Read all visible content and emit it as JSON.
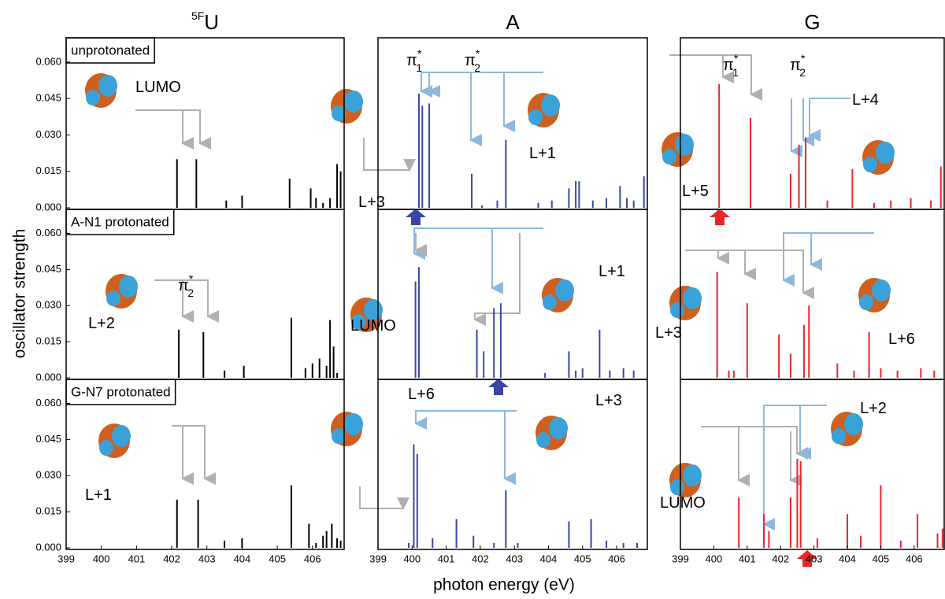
{
  "chart_data": [
    {
      "type": "stick",
      "title": {
        "sup": "5F",
        "text": "U"
      },
      "label": "unprotonated",
      "color": "#000000",
      "x": [
        402.15,
        402.7,
        403.55,
        404.0,
        405.35,
        405.95,
        406.1,
        406.3,
        406.5,
        406.7,
        406.8
      ],
      "values": [
        0.02,
        0.02,
        0.003,
        0.005,
        0.012,
        0.008,
        0.004,
        0.002,
        0.004,
        0.018,
        0.015
      ],
      "xlim": [
        399,
        406.9
      ],
      "ylim": [
        0,
        0.07
      ],
      "yticks": [
        {
          "value": 0,
          "label": "0.000"
        },
        {
          "value": 0.015,
          "label": "0.015"
        },
        {
          "value": 0.03,
          "label": "0.030"
        },
        {
          "value": 0.045,
          "label": "0.045"
        },
        {
          "value": 0.06,
          "label": "0.060"
        }
      ],
      "annotations": [
        {
          "text": "LUMO"
        }
      ]
    },
    {
      "type": "stick",
      "title": {
        "text": "A"
      },
      "color": "#3a45a6",
      "x": [
        400.2,
        400.3,
        400.5,
        401.75,
        402.05,
        402.5,
        402.75,
        403.7,
        404.1,
        404.6,
        404.8,
        404.9,
        405.3,
        405.7,
        406.1,
        406.3,
        406.5,
        406.8
      ],
      "values": [
        0.047,
        0.042,
        0.043,
        0.014,
        0.001,
        0.003,
        0.028,
        0.002,
        0.003,
        0.008,
        0.011,
        0.011,
        0.003,
        0.004,
        0.009,
        0.004,
        0.003,
        0.013
      ],
      "xlim": [
        399,
        406.9
      ],
      "ylim": [
        0,
        0.07
      ],
      "annotations": [
        {
          "text": "π",
          "sub": "1",
          "sup": "*"
        },
        {
          "text": "π",
          "sub": "2",
          "sup": "*"
        },
        {
          "text": "L+1"
        },
        {
          "text": "L+3"
        }
      ]
    },
    {
      "type": "stick",
      "title": {
        "text": "G"
      },
      "color": "#e8262a",
      "x": [
        400.16,
        401.1,
        402.3,
        402.55,
        402.75,
        403.4,
        404.15,
        404.8,
        405.3,
        405.9,
        406.5,
        406.8
      ],
      "values": [
        0.051,
        0.037,
        0.014,
        0.026,
        0.029,
        0.003,
        0.016,
        0.002,
        0.003,
        0.004,
        0.003,
        0.017
      ],
      "xlim": [
        399,
        406.9
      ],
      "ylim": [
        0,
        0.07
      ],
      "annotations": [
        {
          "text": "π",
          "sub": "1",
          "sup": "*"
        },
        {
          "text": "π",
          "sub": "2",
          "sup": "*"
        },
        {
          "text": "L+4"
        },
        {
          "text": "L+5"
        }
      ]
    },
    {
      "type": "stick",
      "label": "A-N1 protonated",
      "color": "#000000",
      "x": [
        402.2,
        402.9,
        403.5,
        404.05,
        405.4,
        405.8,
        406.0,
        406.2,
        406.4,
        406.5,
        406.6,
        406.7
      ],
      "values": [
        0.02,
        0.019,
        0.003,
        0.005,
        0.025,
        0.004,
        0.006,
        0.008,
        0.005,
        0.024,
        0.013,
        0.002
      ],
      "xlim": [
        399,
        406.9
      ],
      "ylim": [
        0,
        0.07
      ],
      "yticks": [
        {
          "value": 0,
          "label": "0.000"
        },
        {
          "value": 0.015,
          "label": "0.015"
        },
        {
          "value": 0.03,
          "label": "0.030"
        },
        {
          "value": 0.045,
          "label": "0.045"
        },
        {
          "value": 0.06,
          "label": "0.060"
        }
      ],
      "annotations": [
        {
          "text": "π",
          "sub": "2",
          "sup": "*"
        },
        {
          "text": "L+2"
        }
      ]
    },
    {
      "type": "stick",
      "color": "#3a45a6",
      "x": [
        400.1,
        400.2,
        401.9,
        402.1,
        402.4,
        402.6,
        403.9,
        404.6,
        404.8,
        405.0,
        405.5,
        405.8,
        406.2,
        406.5
      ],
      "values": [
        0.04,
        0.046,
        0.02,
        0.011,
        0.029,
        0.031,
        0.002,
        0.011,
        0.003,
        0.004,
        0.02,
        0.003,
        0.004,
        0.003
      ],
      "xlim": [
        399,
        406.9
      ],
      "ylim": [
        0,
        0.07
      ],
      "annotations": [
        {
          "text": "L+1"
        },
        {
          "text": "LUMO"
        }
      ]
    },
    {
      "type": "stick",
      "color": "#e8262a",
      "x": [
        400.1,
        400.45,
        400.6,
        401.0,
        401.95,
        402.3,
        402.7,
        402.85,
        403.7,
        404.2,
        404.65,
        405.0,
        405.5,
        406.2,
        406.6
      ],
      "values": [
        0.044,
        0.003,
        0.003,
        0.031,
        0.018,
        0.01,
        0.022,
        0.03,
        0.006,
        0.003,
        0.019,
        0.004,
        0.003,
        0.004,
        0.003
      ],
      "xlim": [
        399,
        406.9
      ],
      "ylim": [
        0,
        0.07
      ],
      "annotations": [
        {
          "text": "L+3"
        },
        {
          "text": "L+6"
        }
      ]
    },
    {
      "type": "stick",
      "label": "G-N7 protonated",
      "color": "#000000",
      "x": [
        402.15,
        402.75,
        403.5,
        404.0,
        405.4,
        405.9,
        406.1,
        406.3,
        406.4,
        406.55,
        406.7,
        406.8
      ],
      "values": [
        0.02,
        0.02,
        0.003,
        0.004,
        0.026,
        0.01,
        0.002,
        0.005,
        0.007,
        0.01,
        0.004,
        0.003
      ],
      "xlim": [
        399,
        406.9
      ],
      "ylim": [
        0,
        0.07
      ],
      "yticks": [
        {
          "value": 0,
          "label": "0.000"
        },
        {
          "value": 0.015,
          "label": "0.015"
        },
        {
          "value": 0.03,
          "label": "0.030"
        },
        {
          "value": 0.045,
          "label": "0.045"
        },
        {
          "value": 0.06,
          "label": "0.060"
        }
      ],
      "xticks": [
        399,
        400,
        401,
        402,
        403,
        404,
        405,
        406
      ],
      "annotations": [
        {
          "text": "L+1"
        }
      ]
    },
    {
      "type": "stick",
      "color": "#3a45a6",
      "x": [
        399.9,
        400.05,
        400.15,
        400.6,
        401.3,
        401.8,
        402.4,
        402.75,
        403.1,
        404.6,
        405.25,
        405.7,
        406.2,
        406.6
      ],
      "values": [
        0.002,
        0.043,
        0.039,
        0.004,
        0.012,
        0.005,
        0.002,
        0.024,
        0.002,
        0.011,
        0.012,
        0.003,
        0.002,
        0.002
      ],
      "xlim": [
        399,
        406.9
      ],
      "ylim": [
        0,
        0.07
      ],
      "xticks": [
        399,
        400,
        401,
        402,
        403,
        404,
        405,
        406
      ],
      "annotations": [
        {
          "text": "L+6"
        },
        {
          "text": "L+3"
        }
      ]
    },
    {
      "type": "stick",
      "color": "#e8262a",
      "x": [
        400.75,
        401.5,
        401.65,
        402.3,
        402.5,
        402.6,
        403.1,
        404.0,
        404.4,
        405.0,
        405.6,
        406.1,
        406.7,
        406.85
      ],
      "values": [
        0.021,
        0.014,
        0.007,
        0.021,
        0.037,
        0.036,
        0.004,
        0.014,
        0.005,
        0.026,
        0.003,
        0.014,
        0.006,
        0.008
      ],
      "xlim": [
        399,
        406.9
      ],
      "ylim": [
        0,
        0.07
      ],
      "xticks": [
        399,
        400,
        401,
        402,
        403,
        404,
        405,
        406
      ],
      "annotations": [
        {
          "text": "L+2"
        },
        {
          "text": "LUMO"
        }
      ]
    }
  ],
  "y_label": "oscillator strength",
  "x_label": "photon energy (eV)"
}
